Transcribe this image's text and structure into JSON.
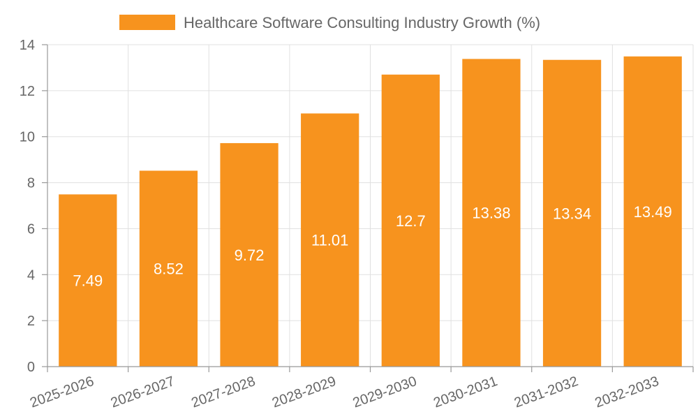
{
  "chart_data": {
    "type": "bar",
    "categories": [
      "2025-2026",
      "2026-2027",
      "2027-2028",
      "2028-2029",
      "2029-2030",
      "2030-2031",
      "2031-2032",
      "2032-2033"
    ],
    "series": [
      {
        "name": "Healthcare Software Consulting Industry Growth (%)",
        "values": [
          7.49,
          8.52,
          9.72,
          11.01,
          12.7,
          13.38,
          13.34,
          13.49
        ],
        "color": "#F7931E"
      }
    ],
    "value_labels": [
      "7.49",
      "8.52",
      "9.72",
      "11.01",
      "12.7",
      "13.38",
      "13.34",
      "13.49"
    ],
    "ylim": [
      0,
      14
    ],
    "y_ticks": [
      0,
      2,
      4,
      6,
      8,
      10,
      12,
      14
    ],
    "y_tick_labels": [
      "0",
      "2",
      "4",
      "6",
      "8",
      "10",
      "12",
      "14"
    ],
    "grid": true,
    "legend_position": "top-center",
    "xlabel": "",
    "ylabel": ""
  }
}
